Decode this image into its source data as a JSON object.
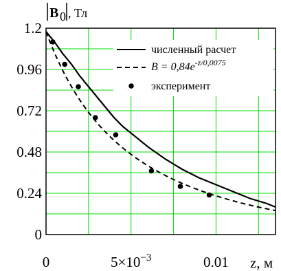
{
  "chart_data": {
    "type": "line",
    "ylabel": {
      "symbol": "B",
      "subscript": "0",
      "unit": ", Тл"
    },
    "xlabel": "z, м",
    "xlim": [
      0,
      0.0135
    ],
    "ylim": [
      0,
      1.2
    ],
    "x_ticks": [
      {
        "value": 0,
        "label": "0"
      },
      {
        "value": 0.005,
        "label_base": "5×10",
        "label_exp": "−3"
      },
      {
        "value": 0.01,
        "label": "0.01"
      }
    ],
    "y_ticks": [
      {
        "value": 0,
        "label": "0"
      },
      {
        "value": 0.24,
        "label": "0.24"
      },
      {
        "value": 0.48,
        "label": "0.48"
      },
      {
        "value": 0.72,
        "label": "0.72"
      },
      {
        "value": 0.96,
        "label": "0.96"
      },
      {
        "value": 1.2,
        "label": "1.2"
      }
    ],
    "grid": true,
    "grid_color": "#00dd00",
    "legend_position": "top-right",
    "series": [
      {
        "name": "численный расчет",
        "style": "solid",
        "x": [
          0,
          0.0005,
          0.001,
          0.0015,
          0.002,
          0.0025,
          0.003,
          0.0035,
          0.004,
          0.0045,
          0.005,
          0.006,
          0.007,
          0.008,
          0.009,
          0.01,
          0.011,
          0.012,
          0.013,
          0.0135
        ],
        "y": [
          1.18,
          1.12,
          1.05,
          0.99,
          0.92,
          0.86,
          0.8,
          0.74,
          0.68,
          0.63,
          0.59,
          0.51,
          0.44,
          0.38,
          0.33,
          0.29,
          0.25,
          0.21,
          0.18,
          0.16
        ]
      },
      {
        "name_prefix": "B = 0,84e",
        "name_exp": "-z/0,0075",
        "style": "dashed",
        "formula": {
          "a": 0.84,
          "b": 0.0075,
          "x_min": 0,
          "x_max": 0.0135
        }
      },
      {
        "name": "эксперимент",
        "style": "markers",
        "x": [
          0.0004,
          0.0011,
          0.0019,
          0.0029,
          0.0041,
          0.0062,
          0.0079,
          0.0096
        ],
        "y": [
          1.12,
          0.99,
          0.86,
          0.68,
          0.58,
          0.37,
          0.28,
          0.23
        ]
      }
    ]
  }
}
